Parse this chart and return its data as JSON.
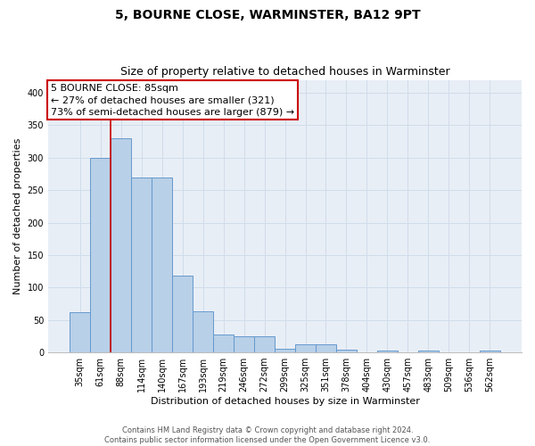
{
  "title": "5, BOURNE CLOSE, WARMINSTER, BA12 9PT",
  "subtitle": "Size of property relative to detached houses in Warminster",
  "xlabel": "Distribution of detached houses by size in Warminster",
  "ylabel": "Number of detached properties",
  "bar_labels": [
    "35sqm",
    "61sqm",
    "88sqm",
    "114sqm",
    "140sqm",
    "167sqm",
    "193sqm",
    "219sqm",
    "246sqm",
    "272sqm",
    "299sqm",
    "325sqm",
    "351sqm",
    "378sqm",
    "404sqm",
    "430sqm",
    "457sqm",
    "483sqm",
    "509sqm",
    "536sqm",
    "562sqm"
  ],
  "bar_values": [
    62,
    300,
    330,
    270,
    270,
    118,
    63,
    28,
    25,
    25,
    6,
    12,
    12,
    4,
    0,
    3,
    0,
    3,
    0,
    0,
    3
  ],
  "bar_color": "#b8d0e8",
  "bar_edge_color": "#6699cc",
  "grid_color": "#d0dcea",
  "background_color": "#e8eef6",
  "annotation_line1": "5 BOURNE CLOSE: 85sqm",
  "annotation_line2": "← 27% of detached houses are smaller (321)",
  "annotation_line3": "73% of semi-detached houses are larger (879) →",
  "annotation_box_color": "#ffffff",
  "annotation_box_edge_color": "#cc0000",
  "vline_color": "#cc0000",
  "vline_x_index": 1.5,
  "ylim": [
    0,
    420
  ],
  "yticks": [
    0,
    50,
    100,
    150,
    200,
    250,
    300,
    350,
    400
  ],
  "footnote": "Contains HM Land Registry data © Crown copyright and database right 2024.\nContains public sector information licensed under the Open Government Licence v3.0.",
  "title_fontsize": 10,
  "subtitle_fontsize": 9,
  "axis_label_fontsize": 8,
  "tick_fontsize": 7,
  "annotation_fontsize": 8
}
